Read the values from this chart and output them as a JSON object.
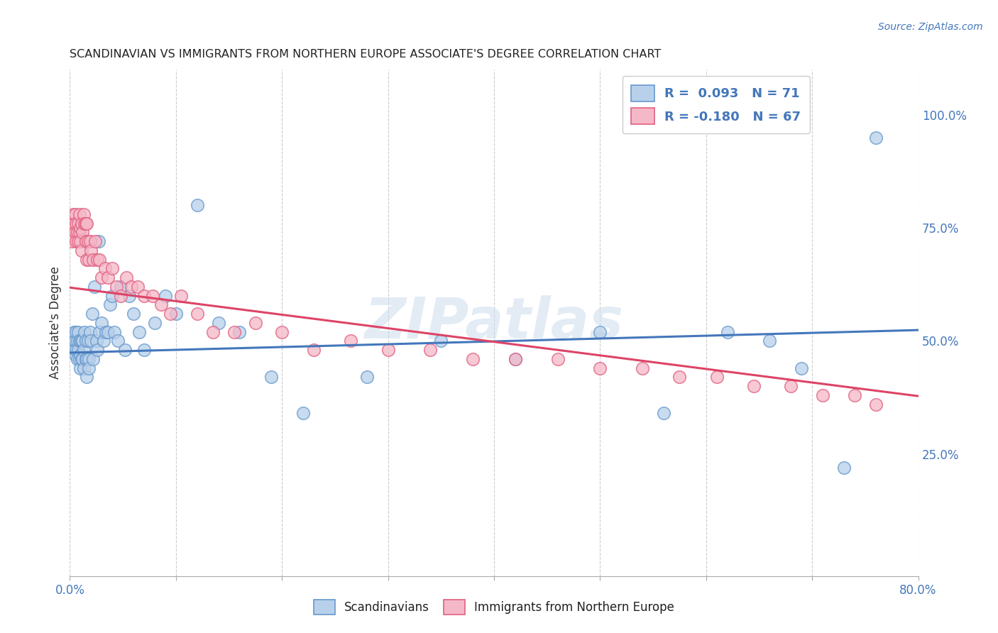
{
  "title": "SCANDINAVIAN VS IMMIGRANTS FROM NORTHERN EUROPE ASSOCIATE'S DEGREE CORRELATION CHART",
  "source": "Source: ZipAtlas.com",
  "ylabel": "Associate's Degree",
  "right_yticklabels": [
    "",
    "25.0%",
    "50.0%",
    "75.0%",
    "100.0%"
  ],
  "right_ytick_vals": [
    0.0,
    0.25,
    0.5,
    0.75,
    1.0
  ],
  "legend_blue_label": "R =  0.093   N = 71",
  "legend_pink_label": "R = -0.180   N = 67",
  "blue_fill": "#b8d0ea",
  "pink_fill": "#f5b8c8",
  "blue_edge": "#6699cc",
  "pink_edge": "#e06080",
  "blue_line_color": "#4477bb",
  "pink_line_color": "#dd4466",
  "watermark": "ZIPatlas",
  "xlim": [
    0.0,
    0.8
  ],
  "ylim": [
    -0.02,
    1.1
  ],
  "blue_x": [
    0.003,
    0.004,
    0.004,
    0.005,
    0.005,
    0.006,
    0.006,
    0.007,
    0.007,
    0.008,
    0.008,
    0.009,
    0.009,
    0.01,
    0.01,
    0.01,
    0.011,
    0.011,
    0.012,
    0.012,
    0.013,
    0.013,
    0.014,
    0.015,
    0.015,
    0.016,
    0.016,
    0.017,
    0.018,
    0.018,
    0.019,
    0.02,
    0.021,
    0.022,
    0.023,
    0.025,
    0.026,
    0.027,
    0.028,
    0.03,
    0.032,
    0.034,
    0.036,
    0.038,
    0.04,
    0.042,
    0.045,
    0.048,
    0.052,
    0.056,
    0.06,
    0.065,
    0.07,
    0.08,
    0.09,
    0.1,
    0.12,
    0.14,
    0.16,
    0.19,
    0.22,
    0.28,
    0.35,
    0.42,
    0.5,
    0.56,
    0.62,
    0.66,
    0.69,
    0.73,
    0.76
  ],
  "blue_y": [
    0.5,
    0.48,
    0.52,
    0.5,
    0.47,
    0.52,
    0.48,
    0.5,
    0.46,
    0.52,
    0.48,
    0.5,
    0.46,
    0.5,
    0.47,
    0.44,
    0.5,
    0.46,
    0.5,
    0.46,
    0.44,
    0.48,
    0.52,
    0.5,
    0.46,
    0.42,
    0.46,
    0.5,
    0.46,
    0.44,
    0.52,
    0.5,
    0.56,
    0.46,
    0.62,
    0.5,
    0.48,
    0.72,
    0.52,
    0.54,
    0.5,
    0.52,
    0.52,
    0.58,
    0.6,
    0.52,
    0.5,
    0.62,
    0.48,
    0.6,
    0.56,
    0.52,
    0.48,
    0.54,
    0.6,
    0.56,
    0.8,
    0.54,
    0.52,
    0.42,
    0.34,
    0.42,
    0.5,
    0.46,
    0.52,
    0.34,
    0.52,
    0.5,
    0.44,
    0.22,
    0.95
  ],
  "pink_x": [
    0.002,
    0.003,
    0.003,
    0.004,
    0.005,
    0.005,
    0.006,
    0.006,
    0.007,
    0.008,
    0.008,
    0.009,
    0.009,
    0.01,
    0.01,
    0.011,
    0.011,
    0.012,
    0.013,
    0.014,
    0.015,
    0.015,
    0.016,
    0.016,
    0.017,
    0.018,
    0.019,
    0.02,
    0.022,
    0.024,
    0.026,
    0.028,
    0.03,
    0.033,
    0.036,
    0.04,
    0.044,
    0.048,
    0.053,
    0.058,
    0.064,
    0.07,
    0.078,
    0.086,
    0.095,
    0.105,
    0.12,
    0.135,
    0.155,
    0.175,
    0.2,
    0.23,
    0.265,
    0.3,
    0.34,
    0.38,
    0.42,
    0.46,
    0.5,
    0.54,
    0.575,
    0.61,
    0.645,
    0.68,
    0.71,
    0.74,
    0.76
  ],
  "pink_y": [
    0.72,
    0.75,
    0.78,
    0.76,
    0.74,
    0.78,
    0.72,
    0.76,
    0.74,
    0.76,
    0.72,
    0.78,
    0.74,
    0.75,
    0.72,
    0.76,
    0.7,
    0.74,
    0.78,
    0.76,
    0.76,
    0.72,
    0.76,
    0.68,
    0.72,
    0.68,
    0.72,
    0.7,
    0.68,
    0.72,
    0.68,
    0.68,
    0.64,
    0.66,
    0.64,
    0.66,
    0.62,
    0.6,
    0.64,
    0.62,
    0.62,
    0.6,
    0.6,
    0.58,
    0.56,
    0.6,
    0.56,
    0.52,
    0.52,
    0.54,
    0.52,
    0.48,
    0.5,
    0.48,
    0.48,
    0.46,
    0.46,
    0.46,
    0.44,
    0.44,
    0.42,
    0.42,
    0.4,
    0.4,
    0.38,
    0.38,
    0.36
  ],
  "blue_trend_x": [
    0.0,
    0.8
  ],
  "blue_trend_y": [
    0.474,
    0.524
  ],
  "pink_trend_x": [
    0.0,
    0.8
  ],
  "pink_trend_y": [
    0.618,
    0.378
  ]
}
